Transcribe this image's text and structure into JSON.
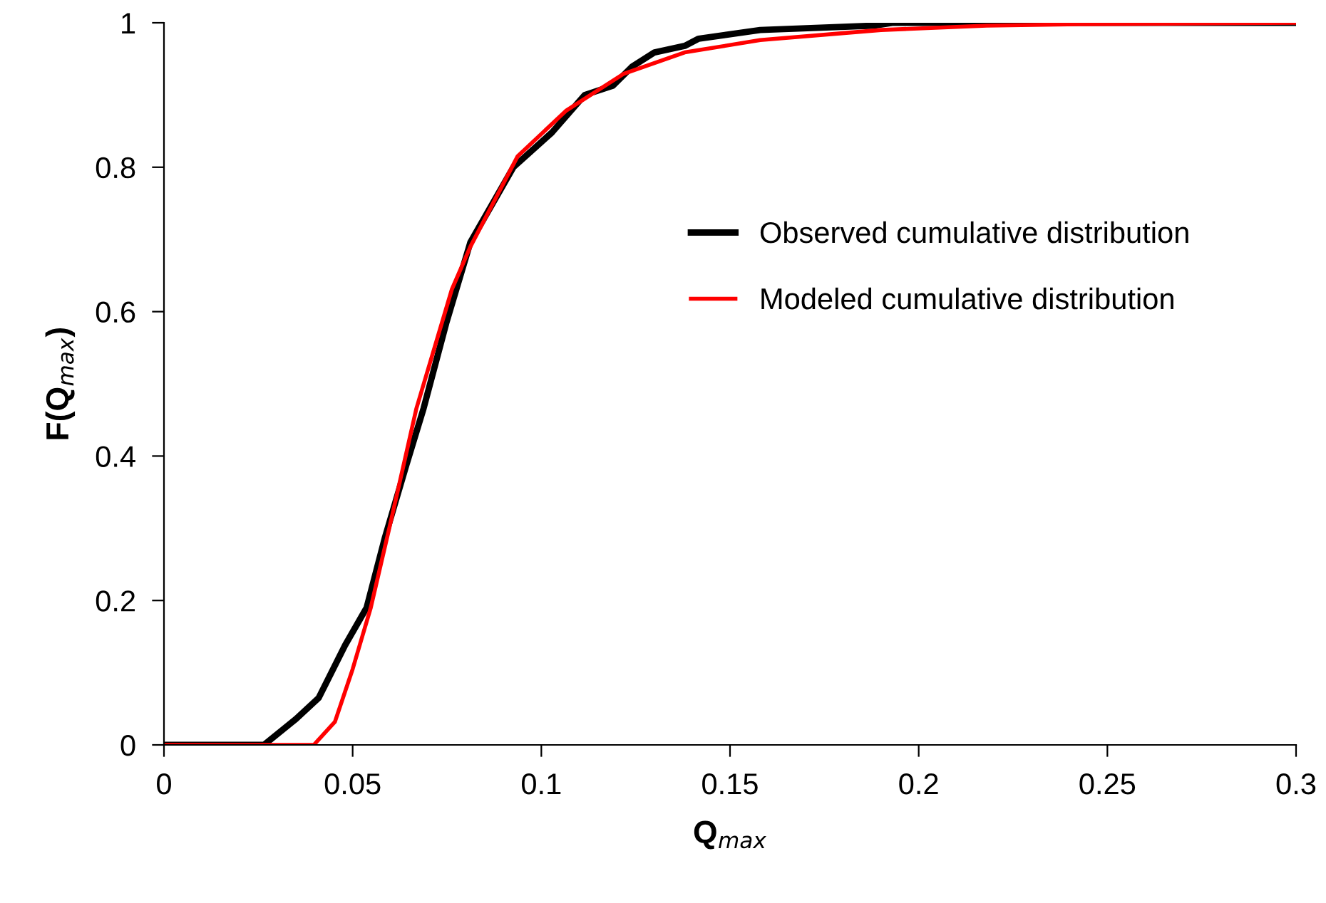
{
  "chart_data": {
    "type": "line",
    "xlabel": "Q$_{max}$",
    "ylabel": "F(Q$_{max}$)",
    "series": [
      {
        "name": "Observed cumulative distribution",
        "color": "#000000",
        "x": [
          0,
          0.0265,
          0.035,
          0.041,
          0.048,
          0.0537,
          0.0586,
          0.0642,
          0.0688,
          0.0748,
          0.0812,
          0.0926,
          0.1028,
          0.1115,
          0.119,
          0.124,
          0.13,
          0.138,
          0.1417,
          0.158,
          0.188,
          0.193,
          0.3
        ],
        "values": [
          0,
          0,
          0.036,
          0.065,
          0.138,
          0.19,
          0.288,
          0.387,
          0.466,
          0.584,
          0.696,
          0.8,
          0.848,
          0.9,
          0.913,
          0.939,
          0.959,
          0.968,
          0.978,
          0.99,
          0.996,
          1,
          1
        ]
      },
      {
        "name": "Modeled cumulative distribution",
        "color": "#ff0000",
        "x": [
          0,
          0.0397,
          0.0453,
          0.05,
          0.0548,
          0.0597,
          0.0669,
          0.0763,
          0.0812,
          0.0937,
          0.1065,
          0.1217,
          0.138,
          0.158,
          0.19,
          0.218,
          0.2426,
          0.3
        ],
        "values": [
          0,
          0,
          0.032,
          0.105,
          0.19,
          0.3,
          0.466,
          0.631,
          0.69,
          0.815,
          0.878,
          0.929,
          0.959,
          0.976,
          0.99,
          0.996,
          0.998,
          1
        ]
      }
    ],
    "xlim": [
      0,
      0.3
    ],
    "ylim": [
      0,
      1
    ],
    "xticks": [
      0,
      0.05,
      0.1,
      0.15,
      0.2,
      0.25,
      0.3
    ],
    "yticks": [
      0,
      0.2,
      0.4,
      0.6,
      0.8,
      1
    ],
    "grid": false,
    "legend": "right",
    "marker": "none",
    "line_style": "solid"
  }
}
